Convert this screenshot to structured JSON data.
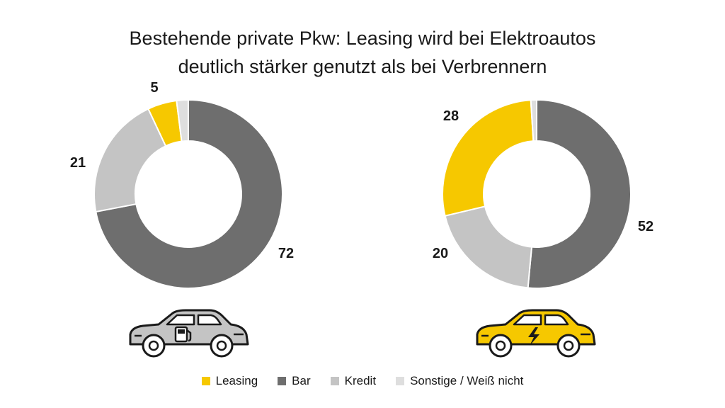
{
  "title_lines": [
    "Bestehende private Pkw: Leasing wird bei Elektroautos",
    "deutlich stärker genutzt als bei Verbrennern"
  ],
  "colors": {
    "leasing": "#f6c800",
    "bar": "#6e6e6e",
    "kredit": "#c4c4c4",
    "sonstige": "#dedede"
  },
  "icons": {
    "left_car": "combustion-car-icon",
    "right_car": "electric-car-icon"
  },
  "chart_data": [
    {
      "type": "pie",
      "donut": true,
      "categories": [
        "Leasing",
        "Bar",
        "Kredit",
        "Sonstige / Weiß nicht"
      ],
      "values": [
        5,
        72,
        21,
        2
      ],
      "data_labels": [
        "5",
        "72",
        "21",
        ""
      ]
    },
    {
      "type": "pie",
      "donut": true,
      "categories": [
        "Leasing",
        "Bar",
        "Kredit",
        "Sonstige / Weiß nicht"
      ],
      "values": [
        28,
        52,
        20,
        1
      ],
      "data_labels": [
        "28",
        "52",
        "20",
        ""
      ]
    }
  ],
  "legend": [
    {
      "label": "Leasing",
      "color": "#f6c800"
    },
    {
      "label": "Bar",
      "color": "#6e6e6e"
    },
    {
      "label": "Kredit",
      "color": "#c4c4c4"
    },
    {
      "label": "Sonstige / Weiß nicht",
      "color": "#dedede"
    }
  ]
}
